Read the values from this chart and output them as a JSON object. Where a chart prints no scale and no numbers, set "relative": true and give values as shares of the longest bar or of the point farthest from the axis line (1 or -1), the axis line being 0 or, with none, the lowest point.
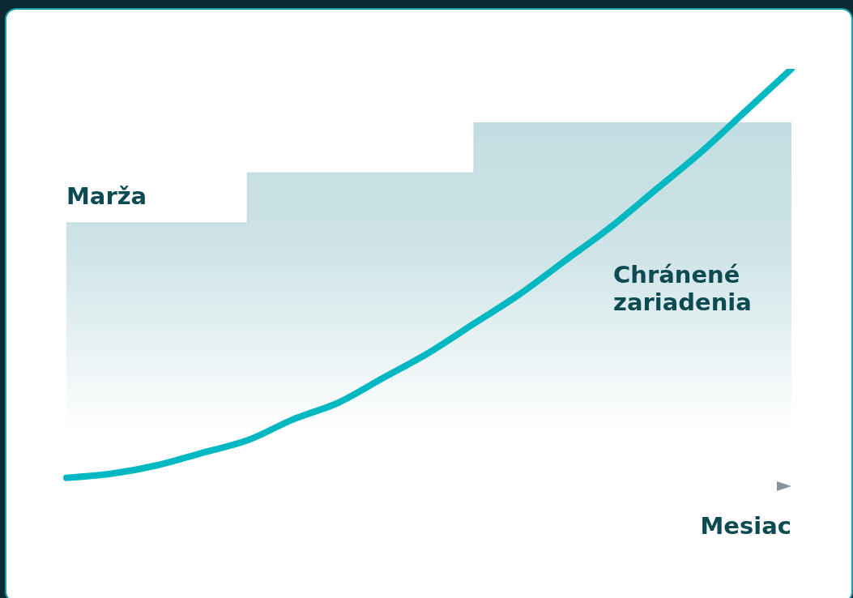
{
  "chart_data": {
    "type": "line",
    "relative": true,
    "xlabel": "Mesiac",
    "categories": [
      null,
      null,
      null,
      null,
      null,
      null,
      null,
      null,
      null,
      null,
      null,
      null,
      null,
      null,
      null,
      null,
      null
    ],
    "series": [
      {
        "name": "Marža",
        "type": "step",
        "color": "#c2dde1",
        "values": [
          0.63,
          0.63,
          0.63,
          0.63,
          0.75,
          0.75,
          0.75,
          0.75,
          0.75,
          0.87,
          0.87,
          0.87,
          0.87,
          0.87,
          0.87,
          0.87,
          0.87
        ]
      },
      {
        "name": "Chránené zariadenia",
        "color": "#00b8c2",
        "values": [
          0.02,
          0.03,
          0.05,
          0.08,
          0.11,
          0.16,
          0.2,
          0.26,
          0.32,
          0.39,
          0.46,
          0.54,
          0.62,
          0.71,
          0.8,
          0.9,
          1
        ]
      }
    ]
  }
}
